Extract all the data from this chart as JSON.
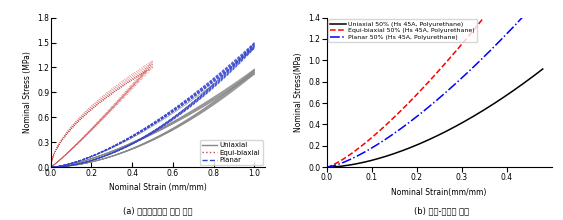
{
  "fig_width": 5.63,
  "fig_height": 2.2,
  "dpi": 100,
  "caption_a": "(a) 히스테리시스 루프 선도",
  "caption_b": "(b) 응력-변형률 선도",
  "ax_a": {
    "xlabel": "Nominal Strain (mm/mm)",
    "ylabel": "Nominal Stress (MPa)",
    "xlim": [
      0.0,
      1.05
    ],
    "ylim": [
      0.0,
      1.8
    ],
    "xticks": [
      0.0,
      0.2,
      0.4,
      0.6,
      0.8,
      1.0
    ],
    "yticks": [
      0.0,
      0.3,
      0.6,
      0.9,
      1.2,
      1.5,
      1.8
    ],
    "legend_labels": [
      "Uniaxial",
      "Equi-biaxial",
      "Planar"
    ]
  },
  "ax_b": {
    "xlabel": "Nominal Strain(mm/mm)",
    "ylabel": "Nominal Stress(MPa)",
    "xlim": [
      0.0,
      0.5
    ],
    "ylim": [
      0.0,
      1.4
    ],
    "xticks": [
      0.0,
      0.1,
      0.2,
      0.3,
      0.4
    ],
    "yticks": [
      0.0,
      0.2,
      0.4,
      0.6,
      0.8,
      1.0,
      1.2,
      1.4
    ],
    "uniaxial_label": "Uniaxial 50% (Hs 45A, Polyurethane)",
    "equibiaxial_label": "Equi-biaxial 50% (Hs 45A, Polyurethane)",
    "planar_label": "Planar 50% (Hs 45A, Polyurethane)"
  }
}
